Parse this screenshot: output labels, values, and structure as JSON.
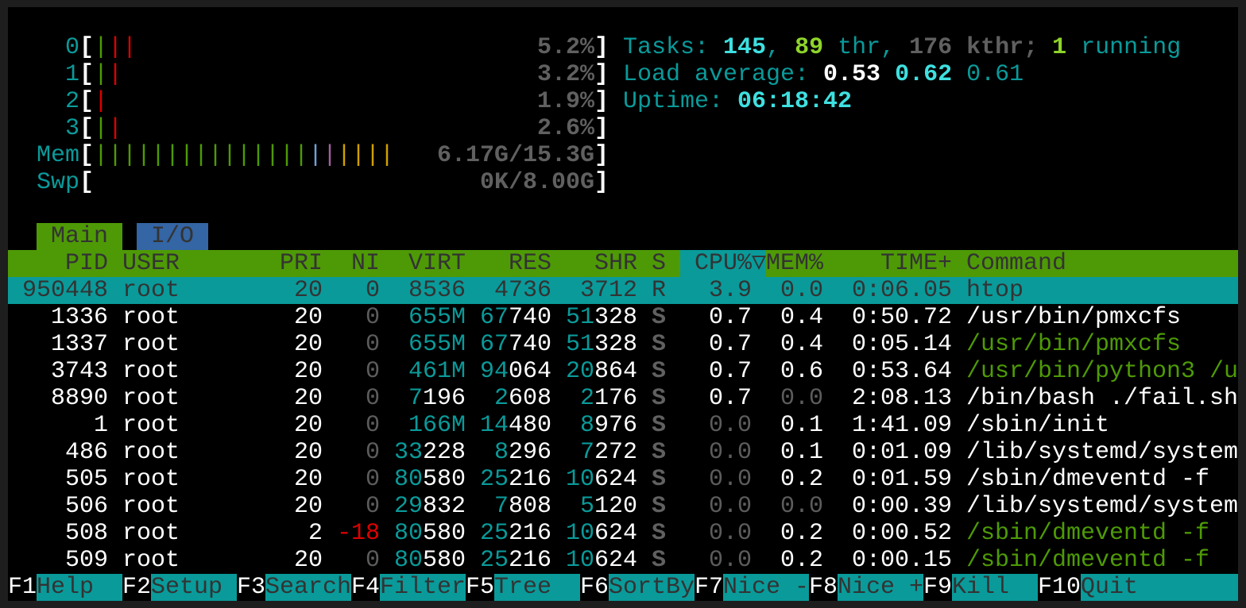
{
  "colors": {
    "teal": "#0a9a9a",
    "header_green": "#4e9a06",
    "tab_blue": "#3465a4",
    "thread_green": "#4e9a06",
    "red": "#dd0000"
  },
  "meters": [
    {
      "label": "0",
      "value": "5.2%",
      "bars": [
        "green",
        "red",
        "red"
      ]
    },
    {
      "label": "1",
      "value": "3.2%",
      "bars": [
        "green",
        "red"
      ]
    },
    {
      "label": "2",
      "value": "1.9%",
      "bars": [
        "red"
      ]
    },
    {
      "label": "3",
      "value": "2.6%",
      "bars": [
        "green",
        "red"
      ]
    },
    {
      "label": "Mem",
      "value": "6.17G/15.3G",
      "bars": [
        "green",
        "green",
        "green",
        "green",
        "green",
        "green",
        "green",
        "green",
        "green",
        "green",
        "green",
        "green",
        "green",
        "green",
        "green",
        "blue",
        "mag",
        "yel",
        "yel",
        "yel",
        "yel"
      ]
    },
    {
      "label": "Swp",
      "value": "0K/8.00G",
      "bars": []
    }
  ],
  "stats": {
    "tasks_label": "Tasks: ",
    "tasks": "145",
    "sep1": ", ",
    "threads": "89",
    "thr_label": " thr, ",
    "kthreads": "176",
    "kthr_label": " kthr; ",
    "running": "1",
    "running_label": " running",
    "load_label": "Load average: ",
    "load1": "0.53",
    "load5": "0.62",
    "load15": "0.61",
    "uptime_label": "Uptime: ",
    "uptime": "06:18:42"
  },
  "tabs": [
    {
      "label": "Main",
      "active": true
    },
    {
      "label": "I/O",
      "active": false
    }
  ],
  "columns": {
    "pid": "PID",
    "user": "USER",
    "pri": "PRI",
    "ni": "NI",
    "virt": "VIRT",
    "res": "RES",
    "shr": "SHR",
    "s": "S",
    "cpu": "CPU%",
    "sort_indicator": "▽",
    "mem": "MEM%",
    "time": "TIME+",
    "command": "Command"
  },
  "processes": [
    {
      "pid": "950448",
      "user": "root",
      "pri": "20",
      "ni": "0",
      "virt": "8536",
      "res": "4736",
      "shr": "3712",
      "s": "R",
      "cpu": "3.9",
      "mem": "0.0",
      "time": "0:06.05",
      "command": "htop",
      "selected": true
    },
    {
      "pid": "1336",
      "user": "root",
      "pri": "20",
      "ni": "0",
      "virt": "655M",
      "res": "67740",
      "shr": "51328",
      "s": "S",
      "cpu": "0.7",
      "mem": "0.4",
      "time": "0:50.72",
      "command": "/usr/bin/pmxcfs"
    },
    {
      "pid": "1337",
      "user": "root",
      "pri": "20",
      "ni": "0",
      "virt": "655M",
      "res": "67740",
      "shr": "51328",
      "s": "S",
      "cpu": "0.7",
      "mem": "0.4",
      "time": "0:05.14",
      "command": "/usr/bin/pmxcfs",
      "thread": true
    },
    {
      "pid": "3743",
      "user": "root",
      "pri": "20",
      "ni": "0",
      "virt": "461M",
      "res": "94064",
      "shr": "20864",
      "s": "S",
      "cpu": "0.7",
      "mem": "0.6",
      "time": "0:53.64",
      "command": "/usr/bin/python3 /u",
      "thread": true
    },
    {
      "pid": "8890",
      "user": "root",
      "pri": "20",
      "ni": "0",
      "virt": "7196",
      "res": "2608",
      "shr": "2176",
      "s": "S",
      "cpu": "0.7",
      "mem": "0.0",
      "time": "2:08.13",
      "command": "/bin/bash ./fail.sh"
    },
    {
      "pid": "1",
      "user": "root",
      "pri": "20",
      "ni": "0",
      "virt": "166M",
      "res": "14480",
      "shr": "8976",
      "s": "S",
      "cpu": "0.0",
      "mem": "0.1",
      "time": "1:41.09",
      "command": "/sbin/init"
    },
    {
      "pid": "486",
      "user": "root",
      "pri": "20",
      "ni": "0",
      "virt": "33228",
      "res": "8296",
      "shr": "7272",
      "s": "S",
      "cpu": "0.0",
      "mem": "0.1",
      "time": "0:01.09",
      "command": "/lib/systemd/system"
    },
    {
      "pid": "505",
      "user": "root",
      "pri": "20",
      "ni": "0",
      "virt": "80580",
      "res": "25216",
      "shr": "10624",
      "s": "S",
      "cpu": "0.0",
      "mem": "0.2",
      "time": "0:01.59",
      "command": "/sbin/dmeventd -f"
    },
    {
      "pid": "506",
      "user": "root",
      "pri": "20",
      "ni": "0",
      "virt": "29832",
      "res": "7808",
      "shr": "5120",
      "s": "S",
      "cpu": "0.0",
      "mem": "0.0",
      "time": "0:00.39",
      "command": "/lib/systemd/system"
    },
    {
      "pid": "508",
      "user": "root",
      "pri": "2",
      "ni": "-18",
      "virt": "80580",
      "res": "25216",
      "shr": "10624",
      "s": "S",
      "cpu": "0.0",
      "mem": "0.2",
      "time": "0:00.52",
      "command": "/sbin/dmeventd -f",
      "thread": true
    },
    {
      "pid": "509",
      "user": "root",
      "pri": "20",
      "ni": "0",
      "virt": "80580",
      "res": "25216",
      "shr": "10624",
      "s": "S",
      "cpu": "0.0",
      "mem": "0.2",
      "time": "0:00.15",
      "command": "/sbin/dmeventd -f",
      "thread": true
    }
  ],
  "function_bar": [
    {
      "key": "F1",
      "label": "Help"
    },
    {
      "key": "F2",
      "label": "Setup"
    },
    {
      "key": "F3",
      "label": "Search"
    },
    {
      "key": "F4",
      "label": "Filter"
    },
    {
      "key": "F5",
      "label": "Tree"
    },
    {
      "key": "F6",
      "label": "SortBy"
    },
    {
      "key": "F7",
      "label": "Nice -"
    },
    {
      "key": "F8",
      "label": "Nice +"
    },
    {
      "key": "F9",
      "label": "Kill"
    },
    {
      "key": "F10",
      "label": "Quit"
    }
  ]
}
